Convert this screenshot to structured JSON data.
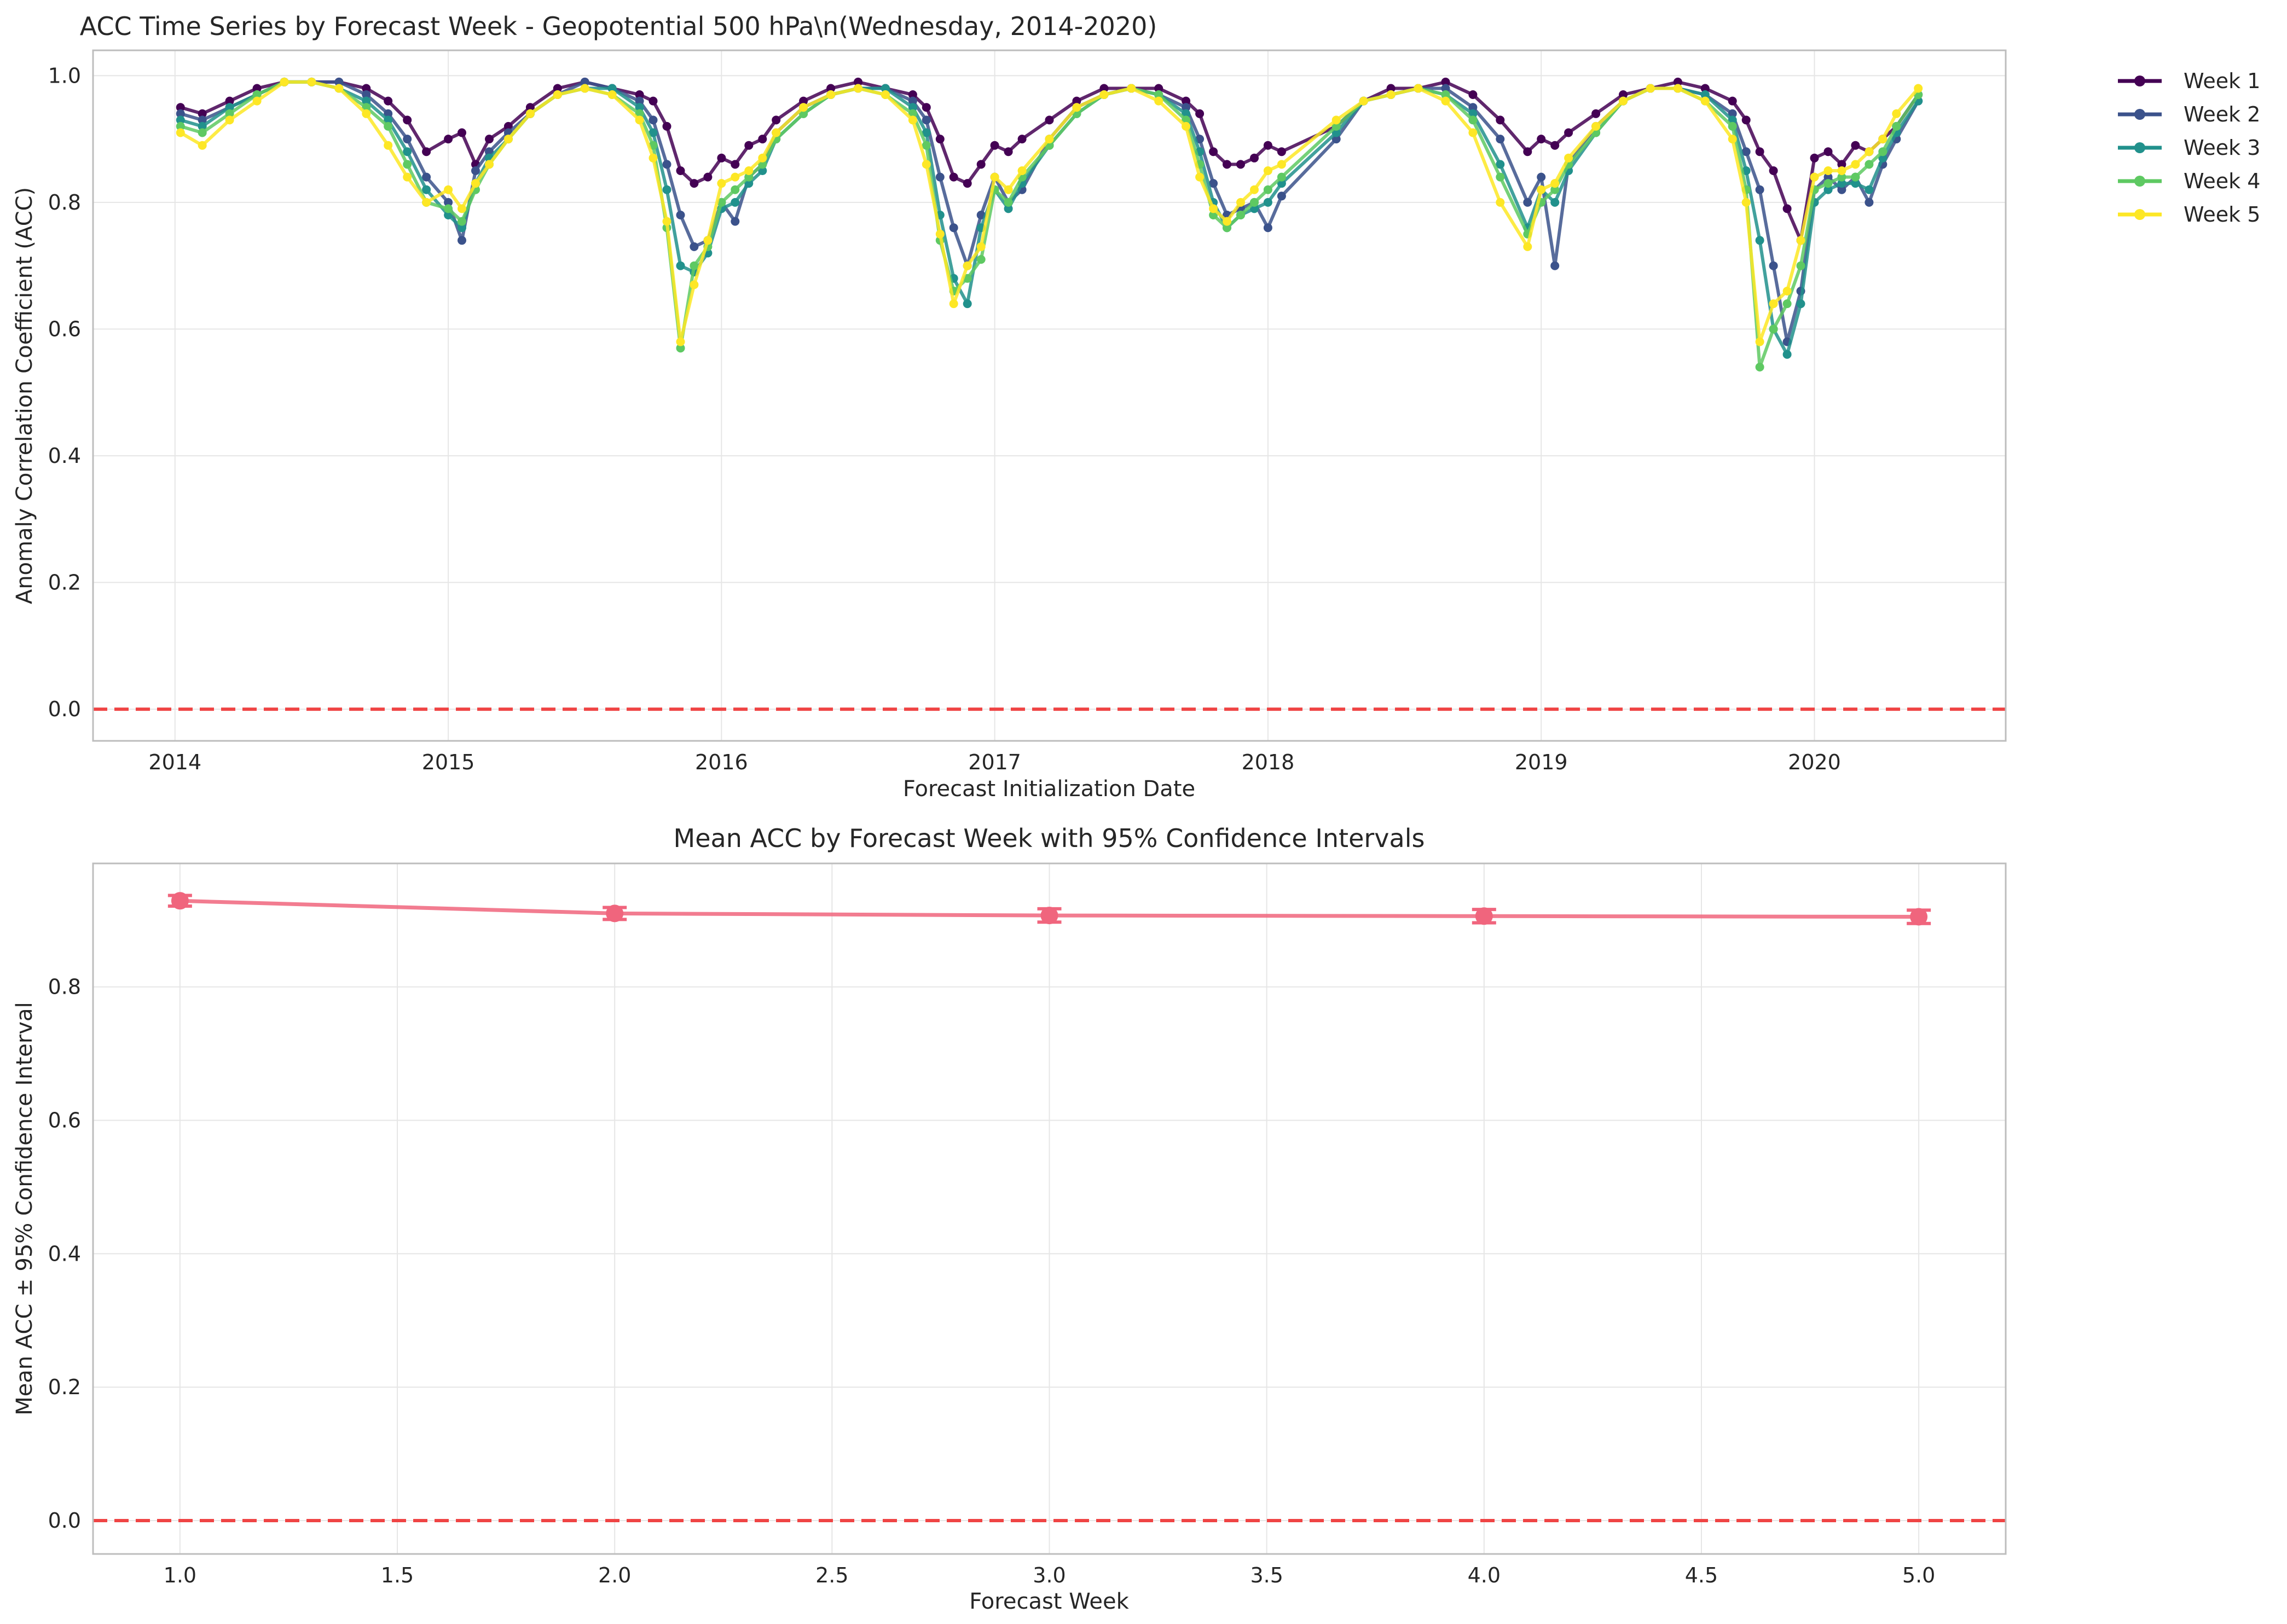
{
  "figure": {
    "background": "#ffffff",
    "grid_color": "#e6e6e6",
    "spine_color": "#bdbdbd",
    "zero_line_color": "#ef4444"
  },
  "chart_data": [
    {
      "type": "line",
      "title": "ACC Time Series by Forecast Week - Geopotential 500 hPa\\n(Wednesday, 2014-2020)",
      "xlabel": "Forecast Initialization Date",
      "ylabel": "Anomaly Correlation Coefficient (ACC)",
      "xlim": [
        2013.7,
        2020.7
      ],
      "ylim": [
        -0.05,
        1.04
      ],
      "x_ticks": [
        2014,
        2015,
        2016,
        2017,
        2018,
        2019,
        2020
      ],
      "x_tick_labels": [
        "2014",
        "2015",
        "2016",
        "2017",
        "2018",
        "2019",
        "2020"
      ],
      "y_ticks": [
        0.0,
        0.2,
        0.4,
        0.6,
        0.8,
        1.0
      ],
      "y_tick_labels": [
        "0.0",
        "0.2",
        "0.4",
        "0.6",
        "0.8",
        "1.0"
      ],
      "grid": true,
      "reference_line": {
        "y": 0.0,
        "style": "dashed",
        "color": "#ef4444"
      },
      "legend": {
        "placement": "outside-top-right"
      },
      "series": [
        {
          "name": "Week 1",
          "color": "#440154",
          "x": [
            2014.02,
            2014.1,
            2014.2,
            2014.3,
            2014.4,
            2014.5,
            2014.6,
            2014.7,
            2014.78,
            2014.85,
            2014.92,
            2015.0,
            2015.05,
            2015.1,
            2015.15,
            2015.22,
            2015.3,
            2015.4,
            2015.5,
            2015.6,
            2015.7,
            2015.75,
            2015.8,
            2015.85,
            2015.9,
            2015.95,
            2016.0,
            2016.05,
            2016.1,
            2016.15,
            2016.2,
            2016.3,
            2016.4,
            2016.5,
            2016.6,
            2016.7,
            2016.75,
            2016.8,
            2016.85,
            2016.9,
            2016.95,
            2017.0,
            2017.05,
            2017.1,
            2017.2,
            2017.3,
            2017.4,
            2017.5,
            2017.6,
            2017.7,
            2017.75,
            2017.8,
            2017.85,
            2017.9,
            2017.95,
            2018.0,
            2018.05,
            2018.25,
            2018.35,
            2018.45,
            2018.55,
            2018.65,
            2018.75,
            2018.85,
            2018.95,
            2019.0,
            2019.05,
            2019.1,
            2019.2,
            2019.3,
            2019.4,
            2019.5,
            2019.6,
            2019.7,
            2019.75,
            2019.8,
            2019.85,
            2019.9,
            2019.95,
            2020.0,
            2020.05,
            2020.1,
            2020.15,
            2020.2,
            2020.25,
            2020.3,
            2020.38
          ],
          "values": [
            0.95,
            0.94,
            0.96,
            0.98,
            0.99,
            0.99,
            0.99,
            0.98,
            0.96,
            0.93,
            0.88,
            0.9,
            0.91,
            0.86,
            0.9,
            0.92,
            0.95,
            0.98,
            0.99,
            0.98,
            0.97,
            0.96,
            0.92,
            0.85,
            0.83,
            0.84,
            0.87,
            0.86,
            0.89,
            0.9,
            0.93,
            0.96,
            0.98,
            0.99,
            0.98,
            0.97,
            0.95,
            0.9,
            0.84,
            0.83,
            0.86,
            0.89,
            0.88,
            0.9,
            0.93,
            0.96,
            0.98,
            0.98,
            0.98,
            0.96,
            0.94,
            0.88,
            0.86,
            0.86,
            0.87,
            0.89,
            0.88,
            0.92,
            0.96,
            0.98,
            0.98,
            0.99,
            0.97,
            0.93,
            0.88,
            0.9,
            0.89,
            0.91,
            0.94,
            0.97,
            0.98,
            0.99,
            0.98,
            0.96,
            0.93,
            0.88,
            0.85,
            0.79,
            0.74,
            0.87,
            0.88,
            0.86,
            0.89,
            0.88,
            0.9,
            0.92,
            0.97
          ]
        },
        {
          "name": "Week 2",
          "color": "#3b528b",
          "x": [
            2014.02,
            2014.1,
            2014.2,
            2014.3,
            2014.4,
            2014.5,
            2014.6,
            2014.7,
            2014.78,
            2014.85,
            2014.92,
            2015.0,
            2015.05,
            2015.1,
            2015.15,
            2015.22,
            2015.3,
            2015.4,
            2015.5,
            2015.6,
            2015.7,
            2015.75,
            2015.8,
            2015.85,
            2015.9,
            2015.95,
            2016.0,
            2016.05,
            2016.1,
            2016.15,
            2016.2,
            2016.3,
            2016.4,
            2016.5,
            2016.6,
            2016.7,
            2016.75,
            2016.8,
            2016.85,
            2016.9,
            2016.95,
            2017.0,
            2017.05,
            2017.1,
            2017.2,
            2017.3,
            2017.4,
            2017.5,
            2017.6,
            2017.7,
            2017.75,
            2017.8,
            2017.85,
            2017.9,
            2017.95,
            2018.0,
            2018.05,
            2018.25,
            2018.35,
            2018.45,
            2018.55,
            2018.65,
            2018.75,
            2018.85,
            2018.95,
            2019.0,
            2019.05,
            2019.1,
            2019.2,
            2019.3,
            2019.4,
            2019.5,
            2019.6,
            2019.7,
            2019.75,
            2019.8,
            2019.85,
            2019.9,
            2019.95,
            2020.0,
            2020.05,
            2020.1,
            2020.15,
            2020.2,
            2020.25,
            2020.3,
            2020.38
          ],
          "values": [
            0.94,
            0.93,
            0.95,
            0.97,
            0.99,
            0.99,
            0.99,
            0.97,
            0.94,
            0.9,
            0.84,
            0.8,
            0.74,
            0.85,
            0.88,
            0.91,
            0.94,
            0.97,
            0.99,
            0.98,
            0.96,
            0.93,
            0.86,
            0.78,
            0.73,
            0.74,
            0.8,
            0.77,
            0.84,
            0.86,
            0.91,
            0.95,
            0.97,
            0.98,
            0.98,
            0.96,
            0.93,
            0.84,
            0.76,
            0.7,
            0.78,
            0.84,
            0.8,
            0.82,
            0.9,
            0.95,
            0.97,
            0.98,
            0.97,
            0.95,
            0.9,
            0.83,
            0.78,
            0.79,
            0.8,
            0.76,
            0.81,
            0.9,
            0.96,
            0.97,
            0.98,
            0.98,
            0.95,
            0.9,
            0.8,
            0.84,
            0.7,
            0.86,
            0.92,
            0.96,
            0.98,
            0.98,
            0.97,
            0.94,
            0.88,
            0.82,
            0.7,
            0.58,
            0.66,
            0.82,
            0.84,
            0.82,
            0.84,
            0.8,
            0.86,
            0.9,
            0.96
          ]
        },
        {
          "name": "Week 3",
          "color": "#21918c",
          "x": [
            2014.02,
            2014.1,
            2014.2,
            2014.3,
            2014.4,
            2014.5,
            2014.6,
            2014.7,
            2014.78,
            2014.85,
            2014.92,
            2015.0,
            2015.05,
            2015.1,
            2015.15,
            2015.22,
            2015.3,
            2015.4,
            2015.5,
            2015.6,
            2015.7,
            2015.75,
            2015.8,
            2015.85,
            2015.9,
            2015.95,
            2016.0,
            2016.05,
            2016.1,
            2016.15,
            2016.2,
            2016.3,
            2016.4,
            2016.5,
            2016.6,
            2016.7,
            2016.75,
            2016.8,
            2016.85,
            2016.9,
            2016.95,
            2017.0,
            2017.05,
            2017.1,
            2017.2,
            2017.3,
            2017.4,
            2017.5,
            2017.6,
            2017.7,
            2017.75,
            2017.8,
            2017.85,
            2017.9,
            2017.95,
            2018.0,
            2018.05,
            2018.25,
            2018.35,
            2018.45,
            2018.55,
            2018.65,
            2018.75,
            2018.85,
            2018.95,
            2019.0,
            2019.05,
            2019.1,
            2019.2,
            2019.3,
            2019.4,
            2019.5,
            2019.6,
            2019.7,
            2019.75,
            2019.8,
            2019.85,
            2019.9,
            2019.95,
            2020.0,
            2020.05,
            2020.1,
            2020.15,
            2020.2,
            2020.25,
            2020.3,
            2020.38
          ],
          "values": [
            0.93,
            0.92,
            0.95,
            0.97,
            0.99,
            0.99,
            0.98,
            0.96,
            0.93,
            0.88,
            0.82,
            0.78,
            0.76,
            0.83,
            0.87,
            0.9,
            0.94,
            0.97,
            0.98,
            0.98,
            0.95,
            0.91,
            0.82,
            0.7,
            0.69,
            0.72,
            0.79,
            0.8,
            0.83,
            0.85,
            0.9,
            0.94,
            0.97,
            0.98,
            0.98,
            0.95,
            0.91,
            0.78,
            0.68,
            0.64,
            0.76,
            0.82,
            0.79,
            0.83,
            0.89,
            0.94,
            0.97,
            0.98,
            0.97,
            0.94,
            0.88,
            0.8,
            0.76,
            0.78,
            0.79,
            0.8,
            0.83,
            0.91,
            0.96,
            0.97,
            0.98,
            0.97,
            0.94,
            0.86,
            0.76,
            0.82,
            0.8,
            0.85,
            0.91,
            0.96,
            0.98,
            0.98,
            0.97,
            0.93,
            0.85,
            0.74,
            0.6,
            0.56,
            0.64,
            0.8,
            0.82,
            0.83,
            0.83,
            0.82,
            0.87,
            0.91,
            0.96
          ]
        },
        {
          "name": "Week 4",
          "color": "#5ec962",
          "x": [
            2014.02,
            2014.1,
            2014.2,
            2014.3,
            2014.4,
            2014.5,
            2014.6,
            2014.7,
            2014.78,
            2014.85,
            2014.92,
            2015.0,
            2015.05,
            2015.1,
            2015.15,
            2015.22,
            2015.3,
            2015.4,
            2015.5,
            2015.6,
            2015.7,
            2015.75,
            2015.8,
            2015.85,
            2015.9,
            2015.95,
            2016.0,
            2016.05,
            2016.1,
            2016.15,
            2016.2,
            2016.3,
            2016.4,
            2016.5,
            2016.6,
            2016.7,
            2016.75,
            2016.8,
            2016.85,
            2016.9,
            2016.95,
            2017.0,
            2017.05,
            2017.1,
            2017.2,
            2017.3,
            2017.4,
            2017.5,
            2017.6,
            2017.7,
            2017.75,
            2017.8,
            2017.85,
            2017.9,
            2017.95,
            2018.0,
            2018.05,
            2018.25,
            2018.35,
            2018.45,
            2018.55,
            2018.65,
            2018.75,
            2018.85,
            2018.95,
            2019.0,
            2019.05,
            2019.1,
            2019.2,
            2019.3,
            2019.4,
            2019.5,
            2019.6,
            2019.7,
            2019.75,
            2019.8,
            2019.85,
            2019.9,
            2019.95,
            2020.0,
            2020.05,
            2020.1,
            2020.15,
            2020.2,
            2020.25,
            2020.3,
            2020.38
          ],
          "values": [
            0.92,
            0.91,
            0.94,
            0.97,
            0.99,
            0.99,
            0.98,
            0.95,
            0.92,
            0.86,
            0.8,
            0.79,
            0.77,
            0.82,
            0.86,
            0.9,
            0.94,
            0.97,
            0.98,
            0.97,
            0.94,
            0.89,
            0.76,
            0.57,
            0.7,
            0.73,
            0.8,
            0.82,
            0.84,
            0.86,
            0.9,
            0.94,
            0.97,
            0.98,
            0.97,
            0.94,
            0.89,
            0.74,
            0.66,
            0.68,
            0.71,
            0.82,
            0.8,
            0.84,
            0.89,
            0.94,
            0.97,
            0.98,
            0.97,
            0.93,
            0.86,
            0.78,
            0.76,
            0.78,
            0.8,
            0.82,
            0.84,
            0.92,
            0.96,
            0.97,
            0.98,
            0.97,
            0.93,
            0.84,
            0.75,
            0.8,
            0.82,
            0.86,
            0.91,
            0.96,
            0.98,
            0.98,
            0.96,
            0.92,
            0.82,
            0.54,
            0.6,
            0.64,
            0.7,
            0.82,
            0.83,
            0.84,
            0.84,
            0.86,
            0.88,
            0.92,
            0.97
          ]
        },
        {
          "name": "Week 5",
          "color": "#fde725",
          "x": [
            2014.02,
            2014.1,
            2014.2,
            2014.3,
            2014.4,
            2014.5,
            2014.6,
            2014.7,
            2014.78,
            2014.85,
            2014.92,
            2015.0,
            2015.05,
            2015.1,
            2015.15,
            2015.22,
            2015.3,
            2015.4,
            2015.5,
            2015.6,
            2015.7,
            2015.75,
            2015.8,
            2015.85,
            2015.9,
            2015.95,
            2016.0,
            2016.05,
            2016.1,
            2016.15,
            2016.2,
            2016.3,
            2016.4,
            2016.5,
            2016.6,
            2016.7,
            2016.75,
            2016.8,
            2016.85,
            2016.9,
            2016.95,
            2017.0,
            2017.05,
            2017.1,
            2017.2,
            2017.3,
            2017.4,
            2017.5,
            2017.6,
            2017.7,
            2017.75,
            2017.8,
            2017.85,
            2017.9,
            2017.95,
            2018.0,
            2018.05,
            2018.25,
            2018.35,
            2018.45,
            2018.55,
            2018.65,
            2018.75,
            2018.85,
            2018.95,
            2019.0,
            2019.05,
            2019.1,
            2019.2,
            2019.3,
            2019.4,
            2019.5,
            2019.6,
            2019.7,
            2019.75,
            2019.8,
            2019.85,
            2019.9,
            2019.95,
            2020.0,
            2020.05,
            2020.1,
            2020.15,
            2020.2,
            2020.25,
            2020.3,
            2020.38
          ],
          "values": [
            0.91,
            0.89,
            0.93,
            0.96,
            0.99,
            0.99,
            0.98,
            0.94,
            0.89,
            0.84,
            0.8,
            0.82,
            0.79,
            0.83,
            0.86,
            0.9,
            0.94,
            0.97,
            0.98,
            0.97,
            0.93,
            0.87,
            0.77,
            0.58,
            0.67,
            0.74,
            0.83,
            0.84,
            0.85,
            0.87,
            0.91,
            0.95,
            0.97,
            0.98,
            0.97,
            0.93,
            0.86,
            0.75,
            0.64,
            0.7,
            0.73,
            0.84,
            0.82,
            0.85,
            0.9,
            0.95,
            0.97,
            0.98,
            0.96,
            0.92,
            0.84,
            0.79,
            0.77,
            0.8,
            0.82,
            0.85,
            0.86,
            0.93,
            0.96,
            0.97,
            0.98,
            0.96,
            0.91,
            0.8,
            0.73,
            0.82,
            0.83,
            0.87,
            0.92,
            0.96,
            0.98,
            0.98,
            0.96,
            0.9,
            0.8,
            0.58,
            0.64,
            0.66,
            0.74,
            0.84,
            0.85,
            0.85,
            0.86,
            0.88,
            0.9,
            0.94,
            0.98
          ]
        }
      ]
    },
    {
      "type": "line",
      "title": "Mean ACC by Forecast Week with 95% Confidence Intervals",
      "xlabel": "Forecast Week",
      "ylabel": "Mean ACC ± 95% Confidence Interval",
      "xlim": [
        0.8,
        5.2
      ],
      "ylim": [
        -0.05,
        0.985
      ],
      "x_ticks": [
        1.0,
        1.5,
        2.0,
        2.5,
        3.0,
        3.5,
        4.0,
        4.5,
        5.0
      ],
      "x_tick_labels": [
        "1.0",
        "1.5",
        "2.0",
        "2.5",
        "3.0",
        "3.5",
        "4.0",
        "4.5",
        "5.0"
      ],
      "y_ticks": [
        0.0,
        0.2,
        0.4,
        0.6,
        0.8
      ],
      "y_tick_labels": [
        "0.0",
        "0.2",
        "0.4",
        "0.6",
        "0.8"
      ],
      "grid": true,
      "reference_line": {
        "y": 0.0,
        "style": "dashed",
        "color": "#ef4444"
      },
      "series": [
        {
          "color": "#f0657d",
          "x": [
            1,
            2,
            3,
            4,
            5
          ],
          "values": [
            0.929,
            0.91,
            0.907,
            0.906,
            0.905
          ],
          "ci_half_width": [
            0.008,
            0.009,
            0.01,
            0.01,
            0.01
          ]
        }
      ]
    }
  ]
}
